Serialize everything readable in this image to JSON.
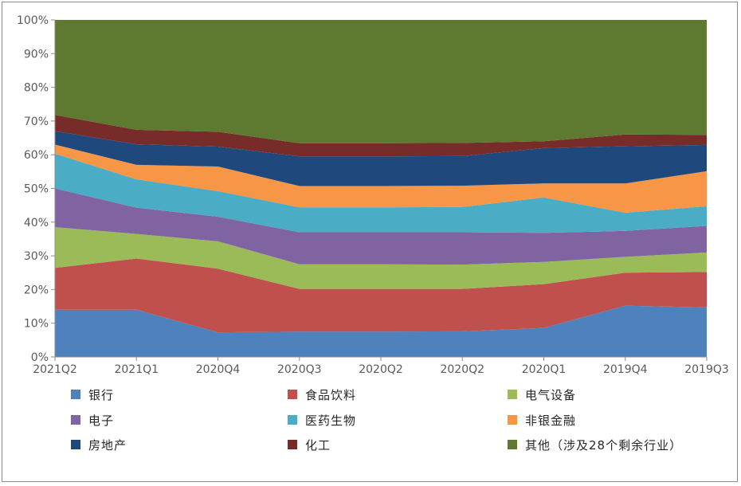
{
  "chart_data": {
    "type": "area",
    "stacked": true,
    "normalized": true,
    "categories": [
      "2021Q2",
      "2021Q1",
      "2020Q4",
      "2020Q3",
      "2020Q2",
      "2020Q2",
      "2020Q1",
      "2019Q4",
      "2019Q3"
    ],
    "ylim": [
      0,
      100
    ],
    "yticks": [
      "0%",
      "10%",
      "20%",
      "30%",
      "40%",
      "50%",
      "60%",
      "70%",
      "80%",
      "90%",
      "100%"
    ],
    "grid": false,
    "legend_position": "bottom",
    "series": [
      {
        "name": "银行",
        "color": "#4f81bd",
        "values": [
          14.0,
          14.0,
          7.3,
          7.5,
          7.5,
          7.6,
          8.6,
          15.2,
          14.7
        ]
      },
      {
        "name": "食品饮料",
        "color": "#c0504d",
        "values": [
          12.4,
          15.2,
          18.9,
          12.7,
          12.7,
          12.6,
          13.0,
          9.8,
          10.5
        ]
      },
      {
        "name": "电气设备",
        "color": "#9bbb59",
        "values": [
          12.1,
          7.3,
          8.1,
          7.3,
          7.3,
          7.2,
          6.6,
          4.7,
          5.8
        ]
      },
      {
        "name": "电子",
        "color": "#8064a2",
        "values": [
          11.5,
          7.8,
          7.3,
          9.5,
          9.5,
          9.6,
          8.6,
          7.7,
          7.9
        ]
      },
      {
        "name": "医药生物",
        "color": "#4bacc6",
        "values": [
          10.3,
          8.4,
          7.6,
          7.4,
          7.4,
          7.5,
          10.5,
          5.4,
          5.8
        ]
      },
      {
        "name": "非银金融",
        "color": "#f79646",
        "values": [
          2.7,
          4.3,
          7.3,
          6.3,
          6.3,
          6.3,
          4.2,
          8.7,
          10.4
        ]
      },
      {
        "name": "房地产",
        "color": "#1f497d",
        "values": [
          4.0,
          6.1,
          5.9,
          8.8,
          8.8,
          8.8,
          10.5,
          11.0,
          7.8
        ]
      },
      {
        "name": "化工",
        "color": "#772c2a",
        "values": [
          4.8,
          4.3,
          4.4,
          3.9,
          3.9,
          3.9,
          2.0,
          3.5,
          3.0
        ]
      },
      {
        "name": "其他（涉及28个剩余行业）",
        "color": "#5e7a30",
        "values": [
          28.2,
          32.6,
          33.2,
          36.6,
          36.6,
          36.5,
          36.0,
          34.0,
          34.1
        ]
      }
    ]
  }
}
